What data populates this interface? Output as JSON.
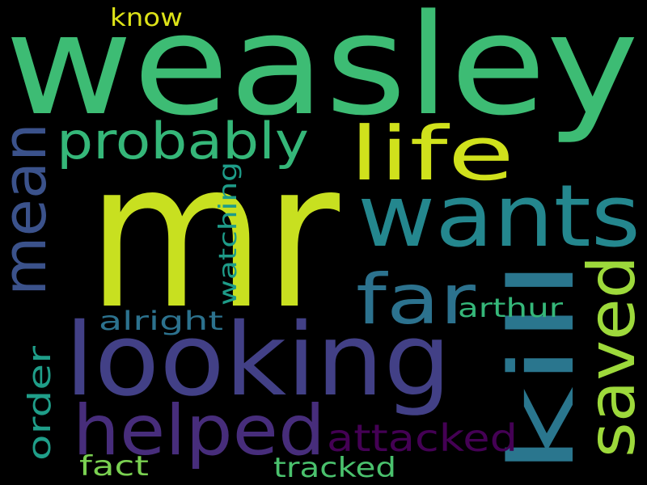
{
  "word_cloud": {
    "background": "#000000",
    "words": [
      {
        "key": "weasley",
        "text": "weasley",
        "color": "#3dbc74"
      },
      {
        "key": "mr",
        "text": "mr",
        "color": "#c8e020"
      },
      {
        "key": "looking",
        "text": "looking",
        "color": "#424086"
      },
      {
        "key": "wants",
        "text": "wants",
        "color": "#24878e"
      },
      {
        "key": "kill",
        "text": "kill",
        "color": "#2a768e"
      },
      {
        "key": "helped",
        "text": "helped",
        "color": "#472d7b"
      },
      {
        "key": "saved",
        "text": "saved",
        "color": "#9dd93b"
      },
      {
        "key": "mean",
        "text": "mean",
        "color": "#3b528b"
      },
      {
        "key": "life",
        "text": "life",
        "color": "#d0e11c"
      },
      {
        "key": "far",
        "text": "far",
        "color": "#2c728e"
      },
      {
        "key": "probably",
        "text": "probably",
        "color": "#35b779"
      },
      {
        "key": "attacked",
        "text": "attacked",
        "color": "#440154"
      },
      {
        "key": "order",
        "text": "order",
        "color": "#1f9e89"
      },
      {
        "key": "watching",
        "text": "watching",
        "color": "#1e9c89"
      },
      {
        "key": "arthur",
        "text": "arthur",
        "color": "#35b779"
      },
      {
        "key": "alright",
        "text": "alright",
        "color": "#2c728e"
      },
      {
        "key": "fact",
        "text": "fact",
        "color": "#7ad151"
      },
      {
        "key": "tracked",
        "text": "tracked",
        "color": "#4ac16d"
      },
      {
        "key": "know",
        "text": "know",
        "color": "#dde318"
      }
    ]
  }
}
